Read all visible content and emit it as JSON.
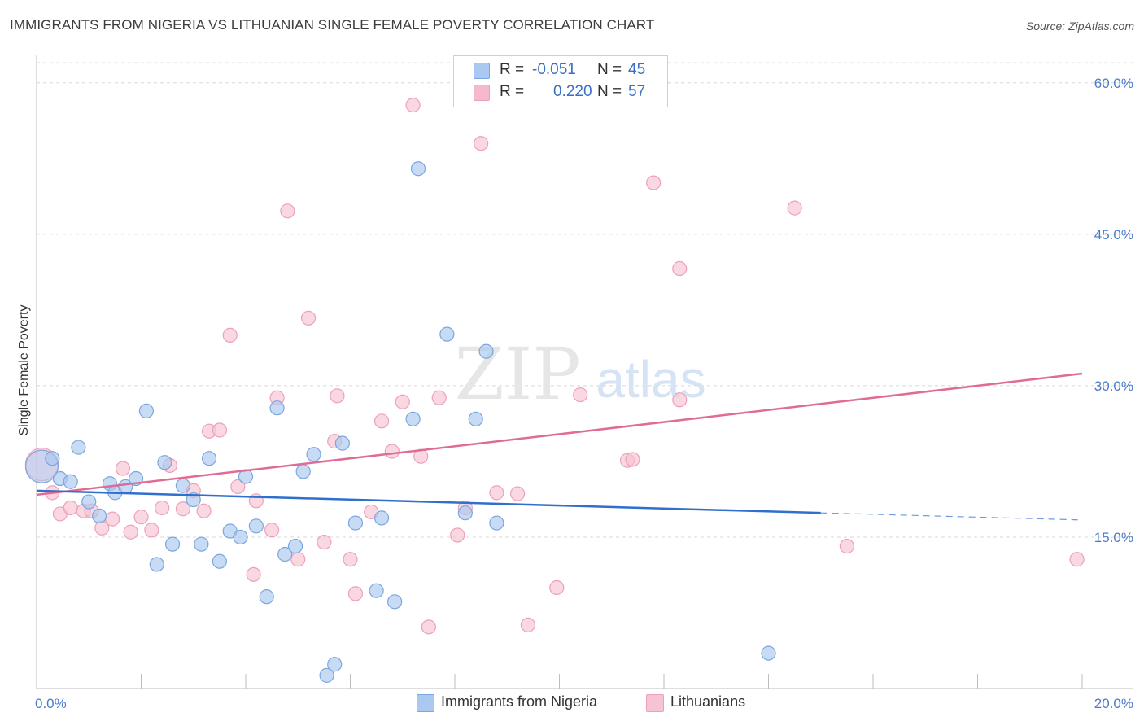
{
  "title": "IMMIGRANTS FROM NIGERIA VS LITHUANIAN SINGLE FEMALE POVERTY CORRELATION CHART",
  "source": "Source: ZipAtlas.com",
  "watermark": {
    "zip": "ZIP",
    "atlas": "atlas"
  },
  "legend": {
    "series1": {
      "r_label": "R =",
      "r_value": "-0.051",
      "n_label": "N =",
      "n_value": "45",
      "color": "#aac8f0"
    },
    "series2": {
      "r_label": "R =",
      "r_value": "0.220",
      "n_label": "N =",
      "n_value": "57",
      "color": "#f6b8cc"
    }
  },
  "bottom_legend": {
    "series1": "Immigrants from Nigeria",
    "series2": "Lithuanians"
  },
  "colors": {
    "blue_fill": "#aac8f0",
    "blue_stroke": "#7aa7df",
    "blue_line": "#2f6fce",
    "pink_fill": "#f6c3d3",
    "pink_stroke": "#eea0b8",
    "pink_line": "#e06b96",
    "tick": "#4a7cc9",
    "grid": "#d8d8d8"
  },
  "chart_data": {
    "type": "scatter",
    "title": "IMMIGRANTS FROM NIGERIA VS LITHUANIAN SINGLE FEMALE POVERTY CORRELATION CHART",
    "xlabel": "",
    "ylabel": "Single Female Poverty",
    "xlim": [
      0,
      20
    ],
    "ylim": [
      0,
      62
    ],
    "x_tick_labels": [
      {
        "value": 0,
        "label": "0.0%"
      },
      {
        "value": 20,
        "label": "20.0%"
      }
    ],
    "y_tick_labels": [
      {
        "value": 15,
        "label": "15.0%"
      },
      {
        "value": 30,
        "label": "30.0%"
      },
      {
        "value": 45,
        "label": "45.0%"
      },
      {
        "value": 60,
        "label": "60.0%"
      }
    ],
    "series": [
      {
        "name": "Immigrants from Nigeria",
        "r": -0.051,
        "n": 45,
        "trend": {
          "x0": 0,
          "y0": 19.6,
          "x1": 15.0,
          "y1": 17.4,
          "dash_to_x": 20.0,
          "dash_y": 16.7
        },
        "points": [
          {
            "x": 0.1,
            "y": 22.0,
            "big": true
          },
          {
            "x": 0.3,
            "y": 22.8
          },
          {
            "x": 0.45,
            "y": 20.8
          },
          {
            "x": 0.65,
            "y": 20.5
          },
          {
            "x": 0.8,
            "y": 23.9
          },
          {
            "x": 1.0,
            "y": 18.5
          },
          {
            "x": 1.2,
            "y": 17.1
          },
          {
            "x": 1.4,
            "y": 20.3
          },
          {
            "x": 1.5,
            "y": 19.4
          },
          {
            "x": 1.7,
            "y": 20.0
          },
          {
            "x": 1.9,
            "y": 20.8
          },
          {
            "x": 2.1,
            "y": 27.5
          },
          {
            "x": 2.3,
            "y": 12.3
          },
          {
            "x": 2.45,
            "y": 22.4
          },
          {
            "x": 2.6,
            "y": 14.3
          },
          {
            "x": 2.8,
            "y": 20.1
          },
          {
            "x": 3.0,
            "y": 18.7
          },
          {
            "x": 3.15,
            "y": 14.3
          },
          {
            "x": 3.3,
            "y": 22.8
          },
          {
            "x": 3.5,
            "y": 12.6
          },
          {
            "x": 3.7,
            "y": 15.6
          },
          {
            "x": 3.9,
            "y": 15.0
          },
          {
            "x": 4.0,
            "y": 21.0
          },
          {
            "x": 4.2,
            "y": 16.1
          },
          {
            "x": 4.4,
            "y": 9.1
          },
          {
            "x": 4.6,
            "y": 27.8
          },
          {
            "x": 4.75,
            "y": 13.3
          },
          {
            "x": 4.95,
            "y": 14.1
          },
          {
            "x": 5.1,
            "y": 21.5
          },
          {
            "x": 5.3,
            "y": 23.2
          },
          {
            "x": 5.55,
            "y": 1.3
          },
          {
            "x": 5.7,
            "y": 2.4
          },
          {
            "x": 5.85,
            "y": 24.3
          },
          {
            "x": 6.1,
            "y": 16.4
          },
          {
            "x": 6.5,
            "y": 9.7
          },
          {
            "x": 6.6,
            "y": 16.9
          },
          {
            "x": 6.85,
            "y": 8.6
          },
          {
            "x": 7.2,
            "y": 26.7
          },
          {
            "x": 7.3,
            "y": 51.5
          },
          {
            "x": 7.85,
            "y": 35.1
          },
          {
            "x": 8.2,
            "y": 17.4
          },
          {
            "x": 8.4,
            "y": 26.7
          },
          {
            "x": 8.6,
            "y": 33.4
          },
          {
            "x": 8.8,
            "y": 16.4
          },
          {
            "x": 14.0,
            "y": 3.5
          }
        ]
      },
      {
        "name": "Lithuanians",
        "r": 0.22,
        "n": 57,
        "trend": {
          "x0": 0,
          "y0": 19.2,
          "x1": 20.0,
          "y1": 31.2
        },
        "points": [
          {
            "x": 0.1,
            "y": 22.2,
            "big": true
          },
          {
            "x": 0.3,
            "y": 19.4
          },
          {
            "x": 0.45,
            "y": 17.3
          },
          {
            "x": 0.65,
            "y": 17.9
          },
          {
            "x": 0.9,
            "y": 17.6
          },
          {
            "x": 1.05,
            "y": 17.6
          },
          {
            "x": 1.25,
            "y": 15.9
          },
          {
            "x": 1.45,
            "y": 16.8
          },
          {
            "x": 1.65,
            "y": 21.8
          },
          {
            "x": 1.8,
            "y": 15.5
          },
          {
            "x": 2.0,
            "y": 17.0
          },
          {
            "x": 2.2,
            "y": 15.7
          },
          {
            "x": 2.4,
            "y": 17.9
          },
          {
            "x": 2.55,
            "y": 22.1
          },
          {
            "x": 2.8,
            "y": 17.8
          },
          {
            "x": 3.0,
            "y": 19.6
          },
          {
            "x": 3.2,
            "y": 17.6
          },
          {
            "x": 3.3,
            "y": 25.5
          },
          {
            "x": 3.5,
            "y": 25.6
          },
          {
            "x": 3.7,
            "y": 35.0
          },
          {
            "x": 3.85,
            "y": 20.0
          },
          {
            "x": 4.2,
            "y": 18.6
          },
          {
            "x": 4.15,
            "y": 11.3
          },
          {
            "x": 4.5,
            "y": 15.7
          },
          {
            "x": 4.6,
            "y": 28.8
          },
          {
            "x": 4.8,
            "y": 47.3
          },
          {
            "x": 5.0,
            "y": 12.8
          },
          {
            "x": 5.2,
            "y": 36.7
          },
          {
            "x": 5.5,
            "y": 14.5
          },
          {
            "x": 5.7,
            "y": 24.5
          },
          {
            "x": 5.75,
            "y": 29.0
          },
          {
            "x": 6.0,
            "y": 12.8
          },
          {
            "x": 6.1,
            "y": 9.4
          },
          {
            "x": 6.4,
            "y": 17.5
          },
          {
            "x": 6.6,
            "y": 26.5
          },
          {
            "x": 6.8,
            "y": 23.5
          },
          {
            "x": 7.0,
            "y": 28.4
          },
          {
            "x": 7.2,
            "y": 57.8
          },
          {
            "x": 7.35,
            "y": 23.0
          },
          {
            "x": 7.5,
            "y": 6.1
          },
          {
            "x": 7.7,
            "y": 28.8
          },
          {
            "x": 8.05,
            "y": 15.2
          },
          {
            "x": 8.2,
            "y": 17.9
          },
          {
            "x": 8.5,
            "y": 54.0
          },
          {
            "x": 8.8,
            "y": 19.4
          },
          {
            "x": 9.2,
            "y": 19.3
          },
          {
            "x": 9.4,
            "y": 6.3
          },
          {
            "x": 9.95,
            "y": 10.0
          },
          {
            "x": 10.4,
            "y": 29.1
          },
          {
            "x": 11.3,
            "y": 22.6
          },
          {
            "x": 11.4,
            "y": 22.7
          },
          {
            "x": 11.8,
            "y": 50.1
          },
          {
            "x": 12.3,
            "y": 28.6
          },
          {
            "x": 12.3,
            "y": 41.6
          },
          {
            "x": 14.5,
            "y": 47.6
          },
          {
            "x": 15.5,
            "y": 14.1
          },
          {
            "x": 19.9,
            "y": 12.8
          }
        ]
      }
    ]
  }
}
